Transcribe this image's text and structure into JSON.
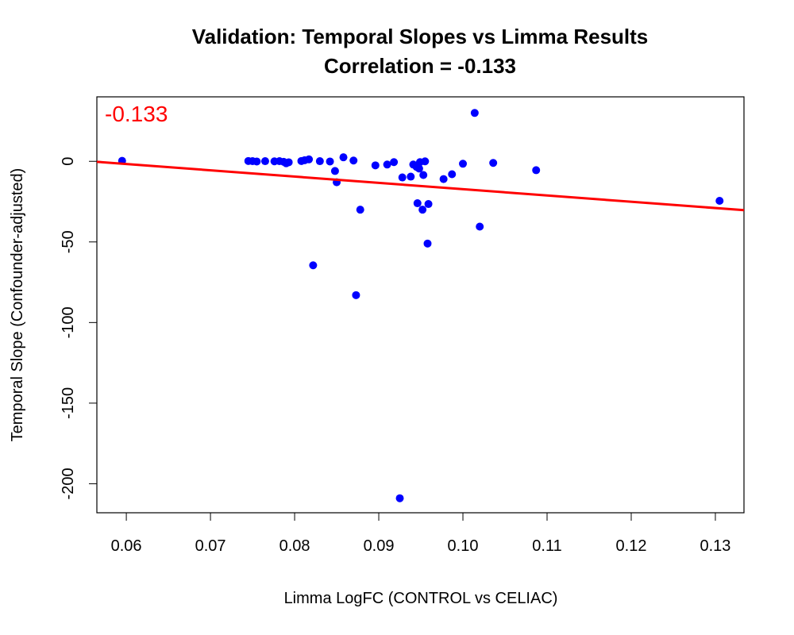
{
  "chart_data": {
    "type": "scatter",
    "title": "Validation: Temporal Slopes vs Limma Results",
    "subtitle": "Correlation = -0.133",
    "xlabel": "Limma LogFC (CONTROL vs CELIAC)",
    "ylabel": "Temporal Slope (Confounder-adjusted)",
    "xlim": [
      0.0565,
      0.1334
    ],
    "ylim": [
      -218,
      40
    ],
    "xticks": [
      0.06,
      0.07,
      0.08,
      0.09,
      0.1,
      0.11,
      0.12,
      0.13
    ],
    "xtick_labels": [
      "0.06",
      "0.07",
      "0.08",
      "0.09",
      "0.10",
      "0.11",
      "0.12",
      "0.13"
    ],
    "yticks": [
      0,
      -50,
      -100,
      -150,
      -200
    ],
    "ytick_labels": [
      "0",
      "-50",
      "-100",
      "-150",
      "-200"
    ],
    "grid": false,
    "legend": "none",
    "point_color": "#0000ff",
    "line_color": "#ff0000",
    "annotation": {
      "text": "-0.133",
      "color": "#ff0000",
      "placement": "top-left"
    },
    "fit_line": {
      "x": [
        0.0565,
        0.1334
      ],
      "y": [
        -0.3,
        -30.3
      ]
    },
    "points": [
      {
        "x": 0.0595,
        "y": 0.3
      },
      {
        "x": 0.0745,
        "y": 0.2
      },
      {
        "x": 0.075,
        "y": 0.1
      },
      {
        "x": 0.0755,
        "y": -0.1
      },
      {
        "x": 0.0765,
        "y": 0.1
      },
      {
        "x": 0.0776,
        "y": 0.0
      },
      {
        "x": 0.0782,
        "y": 0.1
      },
      {
        "x": 0.0787,
        "y": -0.3
      },
      {
        "x": 0.079,
        "y": -1.2
      },
      {
        "x": 0.0793,
        "y": -0.6
      },
      {
        "x": 0.0808,
        "y": 0.2
      },
      {
        "x": 0.0812,
        "y": 0.7
      },
      {
        "x": 0.0817,
        "y": 1.2
      },
      {
        "x": 0.0822,
        "y": -64.5
      },
      {
        "x": 0.083,
        "y": 0.1
      },
      {
        "x": 0.0842,
        "y": -0.1
      },
      {
        "x": 0.0848,
        "y": -6.0
      },
      {
        "x": 0.085,
        "y": -13.0
      },
      {
        "x": 0.0858,
        "y": 2.5
      },
      {
        "x": 0.087,
        "y": 0.5
      },
      {
        "x": 0.0873,
        "y": -83.0
      },
      {
        "x": 0.0878,
        "y": -30.0
      },
      {
        "x": 0.0896,
        "y": -2.5
      },
      {
        "x": 0.091,
        "y": -2.0
      },
      {
        "x": 0.0918,
        "y": -0.5
      },
      {
        "x": 0.0925,
        "y": -209.0
      },
      {
        "x": 0.0928,
        "y": -10.0
      },
      {
        "x": 0.0938,
        "y": -9.5
      },
      {
        "x": 0.0941,
        "y": -2.0
      },
      {
        "x": 0.0945,
        "y": -3.5
      },
      {
        "x": 0.0946,
        "y": -26.0
      },
      {
        "x": 0.0948,
        "y": -4.5
      },
      {
        "x": 0.0949,
        "y": -0.5
      },
      {
        "x": 0.0952,
        "y": -30.0
      },
      {
        "x": 0.0953,
        "y": -8.5
      },
      {
        "x": 0.0955,
        "y": 0.0
      },
      {
        "x": 0.0958,
        "y": -51.0
      },
      {
        "x": 0.0959,
        "y": -26.5
      },
      {
        "x": 0.0977,
        "y": -11.0
      },
      {
        "x": 0.0987,
        "y": -8.0
      },
      {
        "x": 0.1,
        "y": -1.5
      },
      {
        "x": 0.1014,
        "y": 30.0
      },
      {
        "x": 0.102,
        "y": -40.5
      },
      {
        "x": 0.1036,
        "y": -1.0
      },
      {
        "x": 0.1087,
        "y": -5.5
      },
      {
        "x": 0.1305,
        "y": -24.5
      }
    ]
  }
}
